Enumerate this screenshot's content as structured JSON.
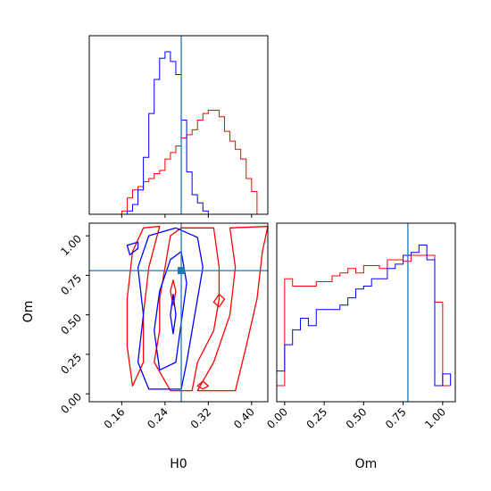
{
  "chart_data": {
    "type": "corner",
    "colors": {
      "series_a": "#ff0000",
      "series_b": "#0000ff",
      "truth": "#1f77b4"
    },
    "truth": {
      "H0": 0.27,
      "Om": 0.78
    },
    "params": [
      {
        "name": "H0",
        "label": "H0",
        "range": [
          0.1,
          0.43
        ],
        "ticks": [
          0.16,
          0.24,
          0.32,
          0.4
        ],
        "tick_labels": [
          "0.16",
          "0.24",
          "0.32",
          "0.40"
        ]
      },
      {
        "name": "Om",
        "label": "Om",
        "range": [
          -0.05,
          1.08
        ],
        "ticks": [
          0.0,
          0.25,
          0.5,
          0.75,
          1.0
        ],
        "tick_labels": [
          "0.00",
          "0.25",
          "0.50",
          "0.75",
          "1.00"
        ]
      }
    ],
    "hist_H0": {
      "edges": [
        0.16,
        0.17,
        0.18,
        0.19,
        0.2,
        0.21,
        0.22,
        0.23,
        0.24,
        0.25,
        0.26,
        0.27,
        0.28,
        0.29,
        0.3,
        0.31,
        0.32,
        0.33,
        0.34,
        0.35,
        0.36,
        0.37,
        0.38,
        0.39,
        0.4,
        0.41,
        0.42
      ],
      "series": [
        {
          "color": "#ff0000",
          "counts": [
            0.02,
            0.1,
            0.15,
            0.17,
            0.2,
            0.22,
            0.25,
            0.27,
            0.34,
            0.38,
            0.42,
            0.47,
            0.49,
            0.52,
            0.58,
            0.62,
            0.64,
            0.64,
            0.6,
            0.51,
            0.45,
            0.4,
            0.34,
            0.22,
            0.14,
            0.0
          ]
        },
        {
          "color": "#0000ff",
          "counts": [
            0.0,
            0.02,
            0.06,
            0.15,
            0.35,
            0.62,
            0.83,
            0.96,
            1.0,
            0.94,
            0.86,
            0.58,
            0.26,
            0.12,
            0.07,
            0.02,
            0.0,
            0.0,
            0.0,
            0.0,
            0.0,
            0.0,
            0.0,
            0.0,
            0.0,
            0.0
          ]
        }
      ]
    },
    "hist_Om": {
      "edges": [
        -0.05,
        0.0,
        0.05,
        0.1,
        0.15,
        0.2,
        0.25,
        0.3,
        0.35,
        0.4,
        0.45,
        0.5,
        0.55,
        0.6,
        0.65,
        0.7,
        0.75,
        0.8,
        0.85,
        0.9,
        0.95,
        1.0,
        1.05
      ],
      "series": [
        {
          "color": "#ff0000",
          "counts": [
            0.0,
            0.73,
            0.68,
            0.68,
            0.68,
            0.71,
            0.71,
            0.75,
            0.77,
            0.8,
            0.77,
            0.82,
            0.82,
            0.8,
            0.86,
            0.86,
            0.85,
            0.89,
            0.89,
            0.89,
            0.57,
            0.0
          ]
        },
        {
          "color": "#0000ff",
          "counts": [
            0.1,
            0.28,
            0.38,
            0.46,
            0.41,
            0.52,
            0.52,
            0.52,
            0.55,
            0.6,
            0.66,
            0.68,
            0.73,
            0.73,
            0.8,
            0.83,
            0.89,
            0.91,
            0.96,
            0.86,
            0.0,
            0.08
          ]
        }
      ]
    },
    "contours": [
      {
        "color": "#ff0000",
        "points": [
          [
            0.22,
            0.2
          ],
          [
            0.23,
            0.4
          ],
          [
            0.23,
            0.6
          ],
          [
            0.24,
            0.8
          ],
          [
            0.25,
            1.0
          ],
          [
            0.27,
            1.05
          ],
          [
            0.33,
            1.05
          ],
          [
            0.34,
            0.8
          ],
          [
            0.34,
            0.6
          ],
          [
            0.33,
            0.4
          ],
          [
            0.3,
            0.2
          ],
          [
            0.29,
            0.02
          ],
          [
            0.25,
            0.02
          ]
        ]
      },
      {
        "color": "#ff0000",
        "points": [
          [
            0.18,
            0.05
          ],
          [
            0.17,
            0.3
          ],
          [
            0.17,
            0.6
          ],
          [
            0.18,
            0.9
          ],
          [
            0.2,
            1.05
          ],
          [
            0.23,
            1.06
          ],
          [
            0.21,
            0.8
          ],
          [
            0.2,
            0.5
          ],
          [
            0.2,
            0.2
          ]
        ]
      },
      {
        "color": "#ff0000",
        "points": [
          [
            0.3,
            0.02
          ],
          [
            0.37,
            0.02
          ],
          [
            0.39,
            0.3
          ],
          [
            0.41,
            0.6
          ],
          [
            0.42,
            0.9
          ],
          [
            0.43,
            1.06
          ],
          [
            0.36,
            1.05
          ],
          [
            0.37,
            0.8
          ],
          [
            0.36,
            0.5
          ],
          [
            0.33,
            0.2
          ]
        ]
      },
      {
        "color": "#ff0000",
        "points": [
          [
            0.31,
            0.03
          ],
          [
            0.32,
            0.05
          ],
          [
            0.31,
            0.08
          ],
          [
            0.3,
            0.05
          ]
        ]
      },
      {
        "color": "#ff0000",
        "points": [
          [
            0.34,
            0.55
          ],
          [
            0.35,
            0.6
          ],
          [
            0.34,
            0.63
          ],
          [
            0.33,
            0.58
          ]
        ]
      },
      {
        "color": "#ff0000",
        "points": [
          [
            0.255,
            0.56
          ],
          [
            0.26,
            0.65
          ],
          [
            0.255,
            0.72
          ],
          [
            0.25,
            0.65
          ]
        ]
      },
      {
        "color": "#0000ff",
        "points": [
          [
            0.21,
            0.03
          ],
          [
            0.19,
            0.2
          ],
          [
            0.2,
            0.5
          ],
          [
            0.19,
            0.8
          ],
          [
            0.21,
            1.0
          ],
          [
            0.26,
            1.05
          ],
          [
            0.3,
            0.99
          ],
          [
            0.31,
            0.8
          ],
          [
            0.3,
            0.6
          ],
          [
            0.29,
            0.4
          ],
          [
            0.28,
            0.2
          ],
          [
            0.27,
            0.03
          ]
        ]
      },
      {
        "color": "#0000ff",
        "points": [
          [
            0.23,
            0.15
          ],
          [
            0.22,
            0.4
          ],
          [
            0.23,
            0.65
          ],
          [
            0.25,
            0.85
          ],
          [
            0.27,
            0.9
          ],
          [
            0.28,
            0.7
          ],
          [
            0.27,
            0.45
          ],
          [
            0.26,
            0.2
          ]
        ]
      },
      {
        "color": "#0000ff",
        "points": [
          [
            0.255,
            0.38
          ],
          [
            0.26,
            0.5
          ],
          [
            0.255,
            0.63
          ],
          [
            0.25,
            0.5
          ]
        ]
      },
      {
        "color": "#0000ff",
        "points": [
          [
            0.175,
            0.88
          ],
          [
            0.19,
            0.92
          ],
          [
            0.19,
            0.96
          ],
          [
            0.17,
            0.94
          ]
        ]
      }
    ]
  }
}
